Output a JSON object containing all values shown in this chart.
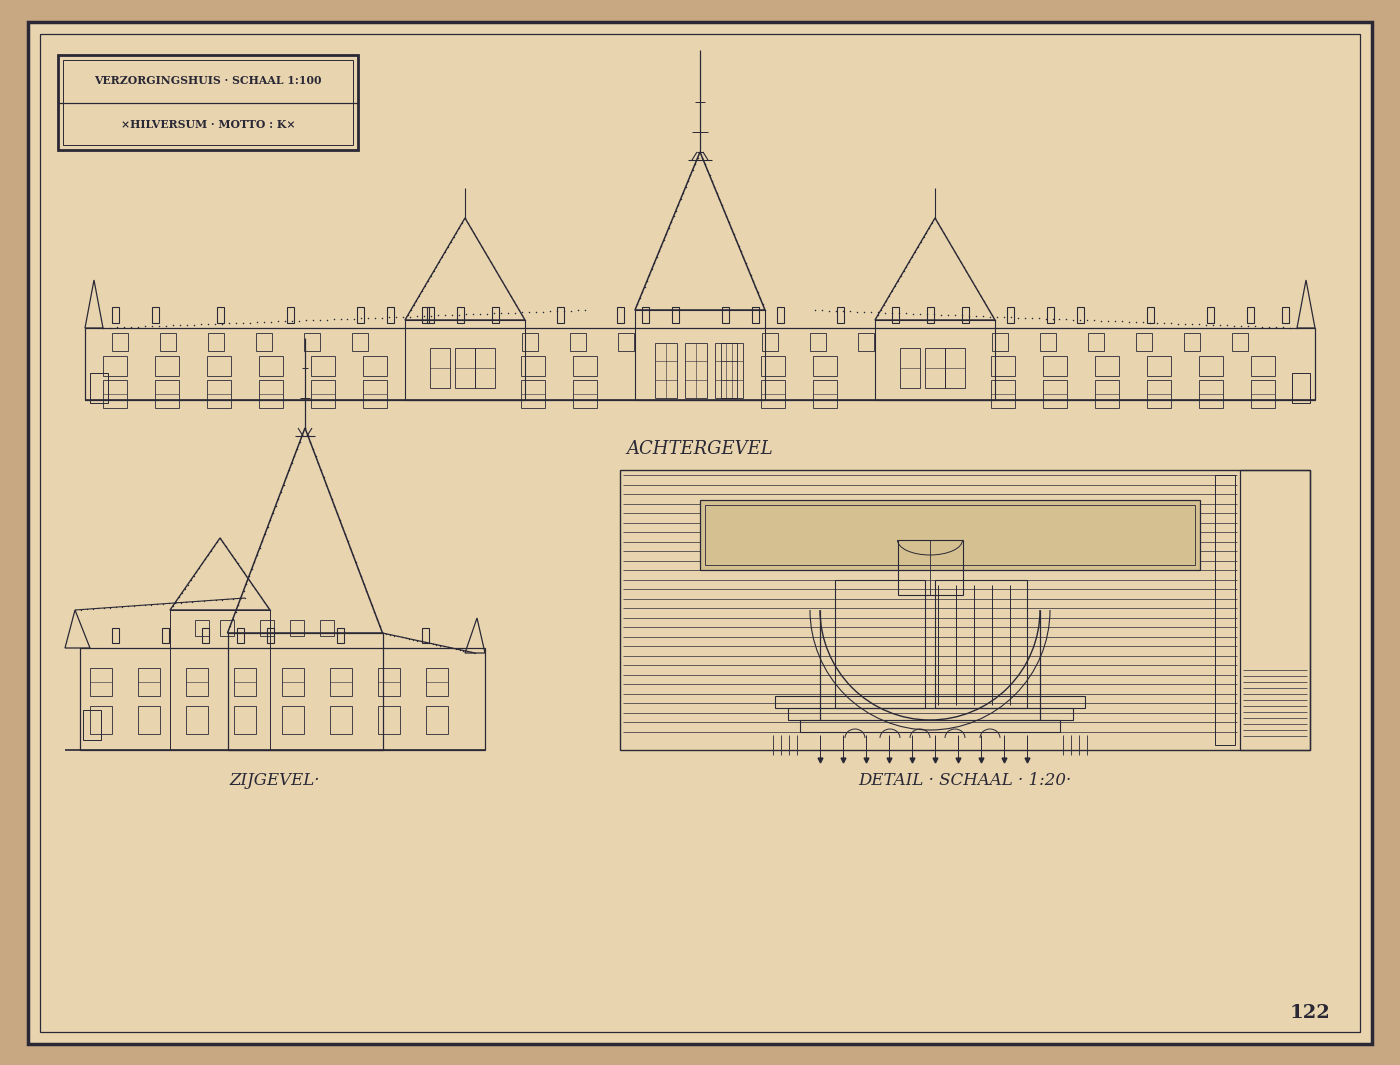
{
  "bg_color": "#c8a882",
  "paper_color": "#e8d5b0",
  "line_color": "#2a2835",
  "title_line1": "VERZORGINGSHUIS · SCHAAL 1:100",
  "title_line2": "×HILVERSUM · MOTTO : K×",
  "label_achtergevel": "ACHTERGEVEL",
  "label_zijgevel": "ZIJGEVEL·",
  "label_detail": "DETAIL · SCHAAL · 1:20·",
  "page_number": "122"
}
